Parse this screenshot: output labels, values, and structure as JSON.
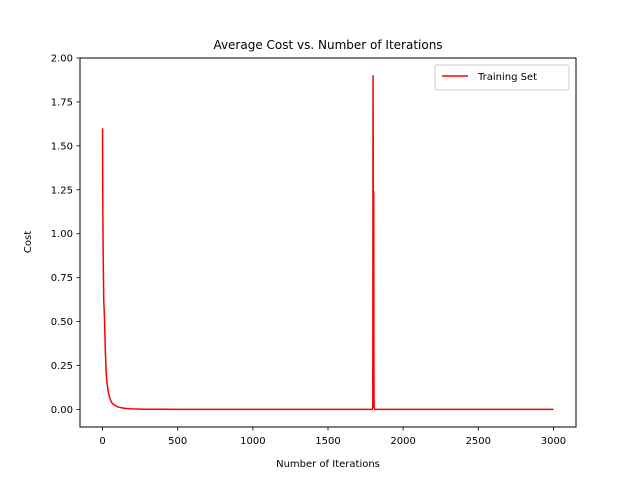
{
  "chart_data": {
    "type": "line",
    "title": "Average Cost vs. Number of Iterations",
    "xlabel": "Number of Iterations",
    "ylabel": "Cost",
    "xlim": [
      -150,
      3150
    ],
    "ylim": [
      -0.1,
      2.0
    ],
    "xticks": [
      0,
      500,
      1000,
      1500,
      2000,
      2500,
      3000
    ],
    "yticks": [
      0.0,
      0.25,
      0.5,
      0.75,
      1.0,
      1.25,
      1.5,
      1.75,
      2.0
    ],
    "xtick_labels": [
      "0",
      "500",
      "1000",
      "1500",
      "2000",
      "2500",
      "3000"
    ],
    "ytick_labels": [
      "0.00",
      "0.25",
      "0.50",
      "0.75",
      "1.00",
      "1.25",
      "1.50",
      "1.75",
      "2.00"
    ],
    "grid": false,
    "legend_position": "top-right",
    "series": [
      {
        "name": "Training Set",
        "color": "#ff0000",
        "x": [
          0,
          1,
          2,
          4,
          6,
          8,
          10,
          13,
          15,
          18,
          20,
          25,
          30,
          40,
          50,
          60,
          70,
          80,
          100,
          120,
          150,
          200,
          250,
          300,
          400,
          500,
          700,
          1000,
          1300,
          1600,
          1795,
          1798,
          1799,
          1800,
          1801,
          1802,
          1803,
          1804,
          1805,
          1806,
          1808,
          1810,
          1850,
          2000,
          2500,
          3000
        ],
        "y": [
          1.6,
          1.35,
          1.12,
          0.9,
          0.75,
          0.62,
          0.58,
          0.52,
          0.45,
          0.35,
          0.3,
          0.2,
          0.15,
          0.09,
          0.06,
          0.04,
          0.03,
          0.025,
          0.015,
          0.01,
          0.006,
          0.003,
          0.002,
          0.001,
          0.001,
          0.0,
          0.0,
          0.0,
          0.0,
          0.0,
          0.0,
          0.02,
          1.2,
          1.9,
          1.55,
          0.2,
          0.57,
          1.24,
          0.4,
          0.05,
          0.01,
          0.0,
          0.0,
          0.0,
          0.0,
          0.0
        ]
      }
    ]
  }
}
